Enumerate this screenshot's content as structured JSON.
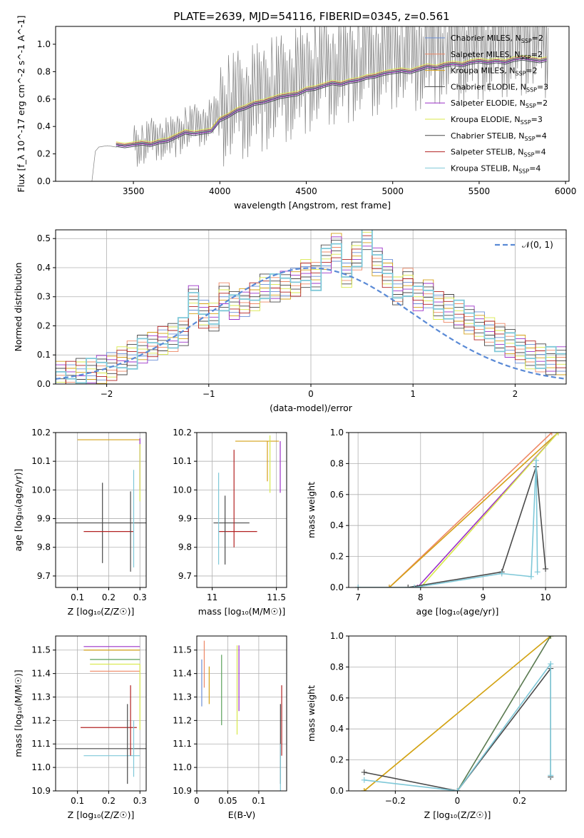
{
  "figure": {
    "title": "PLATE=2639, MJD=54116, FIBERID=0345, z=0.561"
  },
  "chart_data": [
    {
      "id": "spectrum",
      "type": "line",
      "xlabel": "wavelength [Angstrom, rest frame]",
      "ylabel": "Flux [f_λ 10^-17 erg cm^-2 s^-1 A^-1]",
      "xlim": [
        3050,
        6020
      ],
      "ylim": [
        0.0,
        1.13
      ],
      "xticks": [
        3500,
        4000,
        4500,
        5000,
        5500,
        6000
      ],
      "yticks": [
        0.0,
        0.2,
        0.4,
        0.6,
        0.8,
        1.0
      ],
      "grid": false,
      "legend_position": "top-right",
      "data_series": {
        "name": "",
        "color": "#808080",
        "x": [
          3260,
          3280,
          3300,
          3350,
          3400,
          3450,
          3500,
          3550,
          3600,
          3650,
          3700,
          3750,
          3800,
          3850,
          3900,
          3950,
          4000,
          4050,
          4100,
          4150,
          4200,
          4250,
          4300,
          4350,
          4400,
          4450,
          4500,
          4550,
          4600,
          4650,
          4700,
          4750,
          4800,
          4850,
          4900,
          4950,
          5000,
          5050,
          5100,
          5150,
          5200,
          5250,
          5300,
          5350,
          5400,
          5450,
          5500,
          5550,
          5600,
          5650,
          5700,
          5750,
          5800,
          5850,
          5900
        ],
        "y": [
          0.0,
          0.22,
          0.25,
          0.26,
          0.25,
          0.27,
          0.28,
          0.25,
          0.3,
          0.32,
          0.3,
          0.34,
          0.38,
          0.4,
          0.42,
          0.44,
          0.5,
          0.52,
          0.55,
          0.57,
          0.6,
          0.62,
          0.65,
          0.66,
          0.7,
          0.72,
          0.75,
          0.78,
          0.8,
          0.82,
          0.8,
          0.83,
          0.85,
          0.87,
          0.88,
          0.9,
          0.93,
          0.95,
          0.9,
          0.92,
          0.95,
          0.97,
          0.96,
          0.98,
          0.97,
          0.99,
          1.0,
          0.98,
          1.0,
          1.02,
          1.0,
          1.03,
          1.05,
          1.02,
          1.0
        ]
      },
      "series": [
        {
          "name": "Chabrier MILES, N_SSP=2",
          "color": "#6b8fd6"
        },
        {
          "name": "Salpeter MILES, N_SSP=2",
          "color": "#ee8866"
        },
        {
          "name": "Kroupa MILES, N_SSP=2",
          "color": "#d4a017"
        },
        {
          "name": "Chabrier ELODIE, N_SSP=3",
          "color": "#444444"
        },
        {
          "name": "Salpeter ELODIE, N_SSP=2",
          "color": "#9b30c8"
        },
        {
          "name": "Kroupa ELODIE, N_SSP=3",
          "color": "#d8e84a"
        },
        {
          "name": "Chabrier STELIB, N_SSP=4",
          "color": "#4a4a4a"
        },
        {
          "name": "Salpeter STELIB, N_SSP=4",
          "color": "#b22222"
        },
        {
          "name": "Kroupa STELIB, N_SSP=4",
          "color": "#7fc8d8"
        }
      ],
      "model_curve": {
        "x": [
          3400,
          3450,
          3500,
          3550,
          3600,
          3650,
          3700,
          3750,
          3800,
          3850,
          3900,
          3950,
          4000,
          4050,
          4100,
          4150,
          4200,
          4250,
          4300,
          4350,
          4400,
          4450,
          4500,
          4550,
          4600,
          4650,
          4700,
          4750,
          4800,
          4850,
          4900,
          4950,
          5000,
          5050,
          5100,
          5150,
          5200,
          5250,
          5300,
          5350,
          5400,
          5450,
          5500,
          5550,
          5600,
          5650,
          5700,
          5750,
          5800,
          5850,
          5890
        ],
        "y": [
          0.27,
          0.26,
          0.27,
          0.28,
          0.27,
          0.29,
          0.3,
          0.33,
          0.36,
          0.35,
          0.36,
          0.37,
          0.45,
          0.48,
          0.52,
          0.54,
          0.57,
          0.58,
          0.6,
          0.62,
          0.63,
          0.64,
          0.67,
          0.68,
          0.7,
          0.72,
          0.71,
          0.73,
          0.74,
          0.76,
          0.77,
          0.79,
          0.8,
          0.81,
          0.8,
          0.82,
          0.84,
          0.83,
          0.85,
          0.86,
          0.85,
          0.87,
          0.88,
          0.87,
          0.88,
          0.87,
          0.89,
          0.9,
          0.89,
          0.88,
          0.89
        ]
      }
    },
    {
      "id": "residuals",
      "type": "histogram",
      "xlabel": "(data-model)/error",
      "ylabel": "Normed distribution",
      "xlim": [
        -2.5,
        2.5
      ],
      "ylim": [
        0.0,
        0.53
      ],
      "xticks": [
        -2,
        -1,
        0,
        1,
        2
      ],
      "yticks": [
        0.0,
        0.1,
        0.2,
        0.3,
        0.4,
        0.5
      ],
      "grid": true,
      "legend_position": "top-right",
      "reference_curve": {
        "name": "𝒩(0, 1)",
        "color": "#5a8ad6",
        "style": "dashed",
        "mu": 0,
        "sigma": 1
      },
      "bin_edges": [
        -2.5,
        -2.4,
        -2.3,
        -2.2,
        -2.1,
        -2.0,
        -1.9,
        -1.8,
        -1.7,
        -1.6,
        -1.5,
        -1.4,
        -1.3,
        -1.2,
        -1.1,
        -1.0,
        -0.9,
        -0.8,
        -0.7,
        -0.6,
        -0.5,
        -0.4,
        -0.3,
        -0.2,
        -0.1,
        0.0,
        0.1,
        0.2,
        0.3,
        0.4,
        0.5,
        0.6,
        0.7,
        0.8,
        0.9,
        1.0,
        1.1,
        1.2,
        1.3,
        1.4,
        1.5,
        1.6,
        1.7,
        1.8,
        1.9,
        2.0,
        2.1,
        2.2,
        2.3,
        2.4,
        2.5
      ],
      "hist_values": [
        0.03,
        0.03,
        0.04,
        0.04,
        0.05,
        0.06,
        0.08,
        0.1,
        0.12,
        0.13,
        0.15,
        0.16,
        0.18,
        0.29,
        0.24,
        0.23,
        0.3,
        0.27,
        0.28,
        0.3,
        0.33,
        0.33,
        0.34,
        0.35,
        0.38,
        0.37,
        0.43,
        0.47,
        0.38,
        0.44,
        0.51,
        0.42,
        0.38,
        0.32,
        0.35,
        0.3,
        0.31,
        0.27,
        0.26,
        0.24,
        0.22,
        0.2,
        0.18,
        0.16,
        0.14,
        0.12,
        0.1,
        0.09,
        0.08,
        0.08
      ],
      "series_colors": [
        "#6b8fd6",
        "#ee8866",
        "#d4a017",
        "#444444",
        "#9b30c8",
        "#d8e84a",
        "#4a4a4a",
        "#b22222",
        "#7fc8d8"
      ]
    },
    {
      "id": "age-vs-Z",
      "type": "errorbar",
      "xlabel": "Z [log₁₀(Z/Z☉)]",
      "ylabel": "age  [log₁₀(age/yr)]",
      "xlim": [
        0.03,
        0.32
      ],
      "ylim": [
        9.66,
        10.2
      ],
      "xticks": [
        0.1,
        0.2,
        0.3
      ],
      "yticks": [
        9.7,
        9.8,
        9.9,
        10.0,
        10.1,
        10.2
      ],
      "grid": true,
      "points": [
        {
          "x": 0.18,
          "y": 9.885,
          "xerr": 0.15,
          "yerr": 0.14,
          "color": "#4a4a4a"
        },
        {
          "x": 0.2,
          "y": 9.855,
          "xerr": 0.08,
          "yerr": 0.0,
          "color": "#b22222"
        },
        {
          "x": 0.27,
          "y": 9.855,
          "xerr": 0.0,
          "yerr": 0.14,
          "color": "#4a4a4a"
        },
        {
          "x": 0.28,
          "y": 9.74,
          "xerr": 0.0,
          "yerr": 0.0,
          "color": "#b22222"
        },
        {
          "x": 0.28,
          "y": 9.9,
          "xerr": 0.0,
          "yerr": 0.17,
          "color": "#7fc8d8"
        },
        {
          "x": 0.2,
          "y": 10.175,
          "xerr": 0.1,
          "yerr": 0.0,
          "color": "#d4a017"
        },
        {
          "x": 0.3,
          "y": 10.09,
          "xerr": 0.0,
          "yerr": 0.09,
          "color": "#9b30c8"
        },
        {
          "x": 0.3,
          "y": 10.06,
          "xerr": 0.0,
          "yerr": 0.1,
          "color": "#d8e84a"
        }
      ]
    },
    {
      "id": "age-vs-mass",
      "type": "errorbar",
      "xlabel": "mass [log₁₀(M/M☉)]",
      "ylabel": "",
      "xlim": [
        10.88,
        11.58
      ],
      "ylim": [
        9.66,
        10.2
      ],
      "xticks": [
        11.0,
        11.5
      ],
      "yticks": [
        9.7,
        9.8,
        9.9,
        10.0,
        10.1,
        10.2
      ],
      "grid": true,
      "points": [
        {
          "x": 11.15,
          "y": 9.885,
          "xerr": 0.14,
          "yerr": 0.0,
          "color": "#4a4a4a"
        },
        {
          "x": 11.2,
          "y": 9.855,
          "xerr": 0.15,
          "yerr": 0.0,
          "color": "#b22222"
        },
        {
          "x": 11.1,
          "y": 9.86,
          "xerr": 0.0,
          "yerr": 0.12,
          "color": "#4a4a4a"
        },
        {
          "x": 11.05,
          "y": 9.9,
          "xerr": 0.0,
          "yerr": 0.16,
          "color": "#7fc8d8"
        },
        {
          "x": 11.17,
          "y": 9.97,
          "xerr": 0.0,
          "yerr": 0.17,
          "color": "#b22222"
        },
        {
          "x": 11.35,
          "y": 10.17,
          "xerr": 0.17,
          "yerr": 0.0,
          "color": "#d4a017"
        },
        {
          "x": 11.47,
          "y": 10.175,
          "xerr": 0.0,
          "yerr": 0.0,
          "color": "#9b30c8"
        },
        {
          "x": 11.53,
          "y": 10.08,
          "xerr": 0.0,
          "yerr": 0.09,
          "color": "#9b30c8"
        },
        {
          "x": 11.45,
          "y": 10.09,
          "xerr": 0.0,
          "yerr": 0.1,
          "color": "#d8e84a"
        },
        {
          "x": 11.43,
          "y": 10.1,
          "xerr": 0.0,
          "yerr": 0.07,
          "color": "#d4a017"
        }
      ]
    },
    {
      "id": "weight-vs-age",
      "type": "line",
      "xlabel": "age  [log₁₀(age/yr)]",
      "ylabel": "mass weight",
      "xlim": [
        6.85,
        10.33
      ],
      "ylim": [
        0.0,
        1.0
      ],
      "xticks": [
        7,
        8,
        9,
        10
      ],
      "yticks": [
        0.0,
        0.2,
        0.4,
        0.6,
        0.8,
        1.0
      ],
      "grid": true,
      "series": [
        {
          "color": "#ee8866",
          "x": [
            7.5,
            10.1
          ],
          "y": [
            0.0,
            1.0
          ]
        },
        {
          "color": "#d4a017",
          "x": [
            7.5,
            10.2
          ],
          "y": [
            0.0,
            1.0
          ]
        },
        {
          "color": "#9b30c8",
          "x": [
            7.95,
            10.2
          ],
          "y": [
            0.0,
            1.0
          ]
        },
        {
          "color": "#d8e84a",
          "x": [
            8.0,
            10.2
          ],
          "y": [
            0.0,
            1.0
          ]
        },
        {
          "color": "#4a4a4a",
          "x": [
            7.0,
            7.8,
            9.3,
            9.85,
            10.0
          ],
          "y": [
            0.0,
            0.0,
            0.1,
            0.78,
            0.12
          ]
        },
        {
          "color": "#7fc8d8",
          "x": [
            7.0,
            7.9,
            9.3,
            9.77,
            9.85,
            9.87
          ],
          "y": [
            0.0,
            0.0,
            0.09,
            0.07,
            0.82,
            0.1
          ]
        }
      ]
    },
    {
      "id": "mass-vs-Z",
      "type": "errorbar",
      "xlabel": "Z [log₁₀(Z/Z☉)]",
      "ylabel": "mass [log₁₀(M/M☉)]",
      "xlim": [
        0.03,
        0.32
      ],
      "ylim": [
        10.9,
        11.56
      ],
      "xticks": [
        0.1,
        0.2,
        0.3
      ],
      "yticks": [
        10.9,
        11.0,
        11.1,
        11.2,
        11.3,
        11.4,
        11.5
      ],
      "grid": true,
      "points": [
        {
          "x": 0.18,
          "y": 11.08,
          "xerr": 0.15,
          "yerr": 0.0,
          "color": "#4a4a4a"
        },
        {
          "x": 0.2,
          "y": 11.17,
          "xerr": 0.09,
          "yerr": 0.0,
          "color": "#b22222"
        },
        {
          "x": 0.21,
          "y": 11.05,
          "xerr": 0.09,
          "yerr": 0.0,
          "color": "#7fc8d8"
        },
        {
          "x": 0.26,
          "y": 11.1,
          "xerr": 0.0,
          "yerr": 0.17,
          "color": "#4a4a4a"
        },
        {
          "x": 0.27,
          "y": 11.2,
          "xerr": 0.0,
          "yerr": 0.15,
          "color": "#b22222"
        },
        {
          "x": 0.28,
          "y": 11.08,
          "xerr": 0.0,
          "yerr": 0.12,
          "color": "#7fc8d8"
        },
        {
          "x": 0.21,
          "y": 11.515,
          "xerr": 0.09,
          "yerr": 0.0,
          "color": "#9b30c8"
        },
        {
          "x": 0.21,
          "y": 11.5,
          "xerr": 0.09,
          "yerr": 0.0,
          "color": "#d4a017"
        },
        {
          "x": 0.22,
          "y": 11.46,
          "xerr": 0.08,
          "yerr": 0.0,
          "color": "#5aa05a"
        },
        {
          "x": 0.22,
          "y": 11.44,
          "xerr": 0.08,
          "yerr": 0.0,
          "color": "#d8e84a"
        },
        {
          "x": 0.22,
          "y": 11.41,
          "xerr": 0.08,
          "yerr": 0.0,
          "color": "#ee8866"
        },
        {
          "x": 0.3,
          "y": 11.3,
          "xerr": 0.0,
          "yerr": 0.14,
          "color": "#d8e84a"
        }
      ]
    },
    {
      "id": "mass-vs-ebv",
      "type": "errorbar",
      "xlabel": "E(B-V)",
      "ylabel": "",
      "xlim": [
        0.0,
        0.145
      ],
      "ylim": [
        10.9,
        11.56
      ],
      "xticks": [
        0.0,
        0.05,
        0.1
      ],
      "yticks": [
        10.9,
        11.0,
        11.1,
        11.2,
        11.3,
        11.4,
        11.5
      ],
      "grid": true,
      "points": [
        {
          "x": 0.008,
          "y": 11.36,
          "xerr": 0.0,
          "yerr": 0.1,
          "color": "#6b8fd6"
        },
        {
          "x": 0.012,
          "y": 11.44,
          "xerr": 0.0,
          "yerr": 0.1,
          "color": "#ee8866"
        },
        {
          "x": 0.02,
          "y": 11.35,
          "xerr": 0.0,
          "yerr": 0.08,
          "color": "#d4a017"
        },
        {
          "x": 0.04,
          "y": 11.33,
          "xerr": 0.0,
          "yerr": 0.15,
          "color": "#5aa05a"
        },
        {
          "x": 0.065,
          "y": 11.33,
          "xerr": 0.0,
          "yerr": 0.19,
          "color": "#d8e84a"
        },
        {
          "x": 0.068,
          "y": 11.38,
          "xerr": 0.0,
          "yerr": 0.14,
          "color": "#9b30c8"
        },
        {
          "x": 0.135,
          "y": 11.1,
          "xerr": 0.0,
          "yerr": 0.17,
          "color": "#4a4a4a"
        },
        {
          "x": 0.137,
          "y": 11.2,
          "xerr": 0.0,
          "yerr": 0.15,
          "color": "#b22222"
        },
        {
          "x": 0.135,
          "y": 11.0,
          "xerr": 0.0,
          "yerr": 0.1,
          "color": "#7fc8d8"
        }
      ]
    },
    {
      "id": "weight-vs-Z",
      "type": "line",
      "xlabel": "Z [log₁₀(Z/Z☉)]",
      "ylabel": "mass weight",
      "xlim": [
        -0.35,
        0.35
      ],
      "ylim": [
        0.0,
        1.0
      ],
      "xticks": [
        -0.2,
        0.0,
        0.2
      ],
      "yticks": [
        0.0,
        0.2,
        0.4,
        0.6,
        0.8,
        1.0
      ],
      "grid": true,
      "series": [
        {
          "color": "#d8e84a",
          "x": [
            -0.3,
            0.3
          ],
          "y": [
            0.0,
            1.0
          ]
        },
        {
          "color": "#d4a017",
          "x": [
            -0.3,
            0.3
          ],
          "y": [
            0.0,
            1.0
          ]
        },
        {
          "color": "#5a7a50",
          "x": [
            0.0,
            0.3
          ],
          "y": [
            0.0,
            1.0
          ]
        },
        {
          "color": "#4a4a4a",
          "x": [
            -0.3,
            0.0,
            0.3,
            0.3
          ],
          "y": [
            0.12,
            0.0,
            0.79,
            0.09
          ]
        },
        {
          "color": "#7fc8d8",
          "x": [
            -0.3,
            0.0,
            0.3,
            0.3
          ],
          "y": [
            0.07,
            0.0,
            0.82,
            0.1
          ]
        }
      ]
    }
  ]
}
